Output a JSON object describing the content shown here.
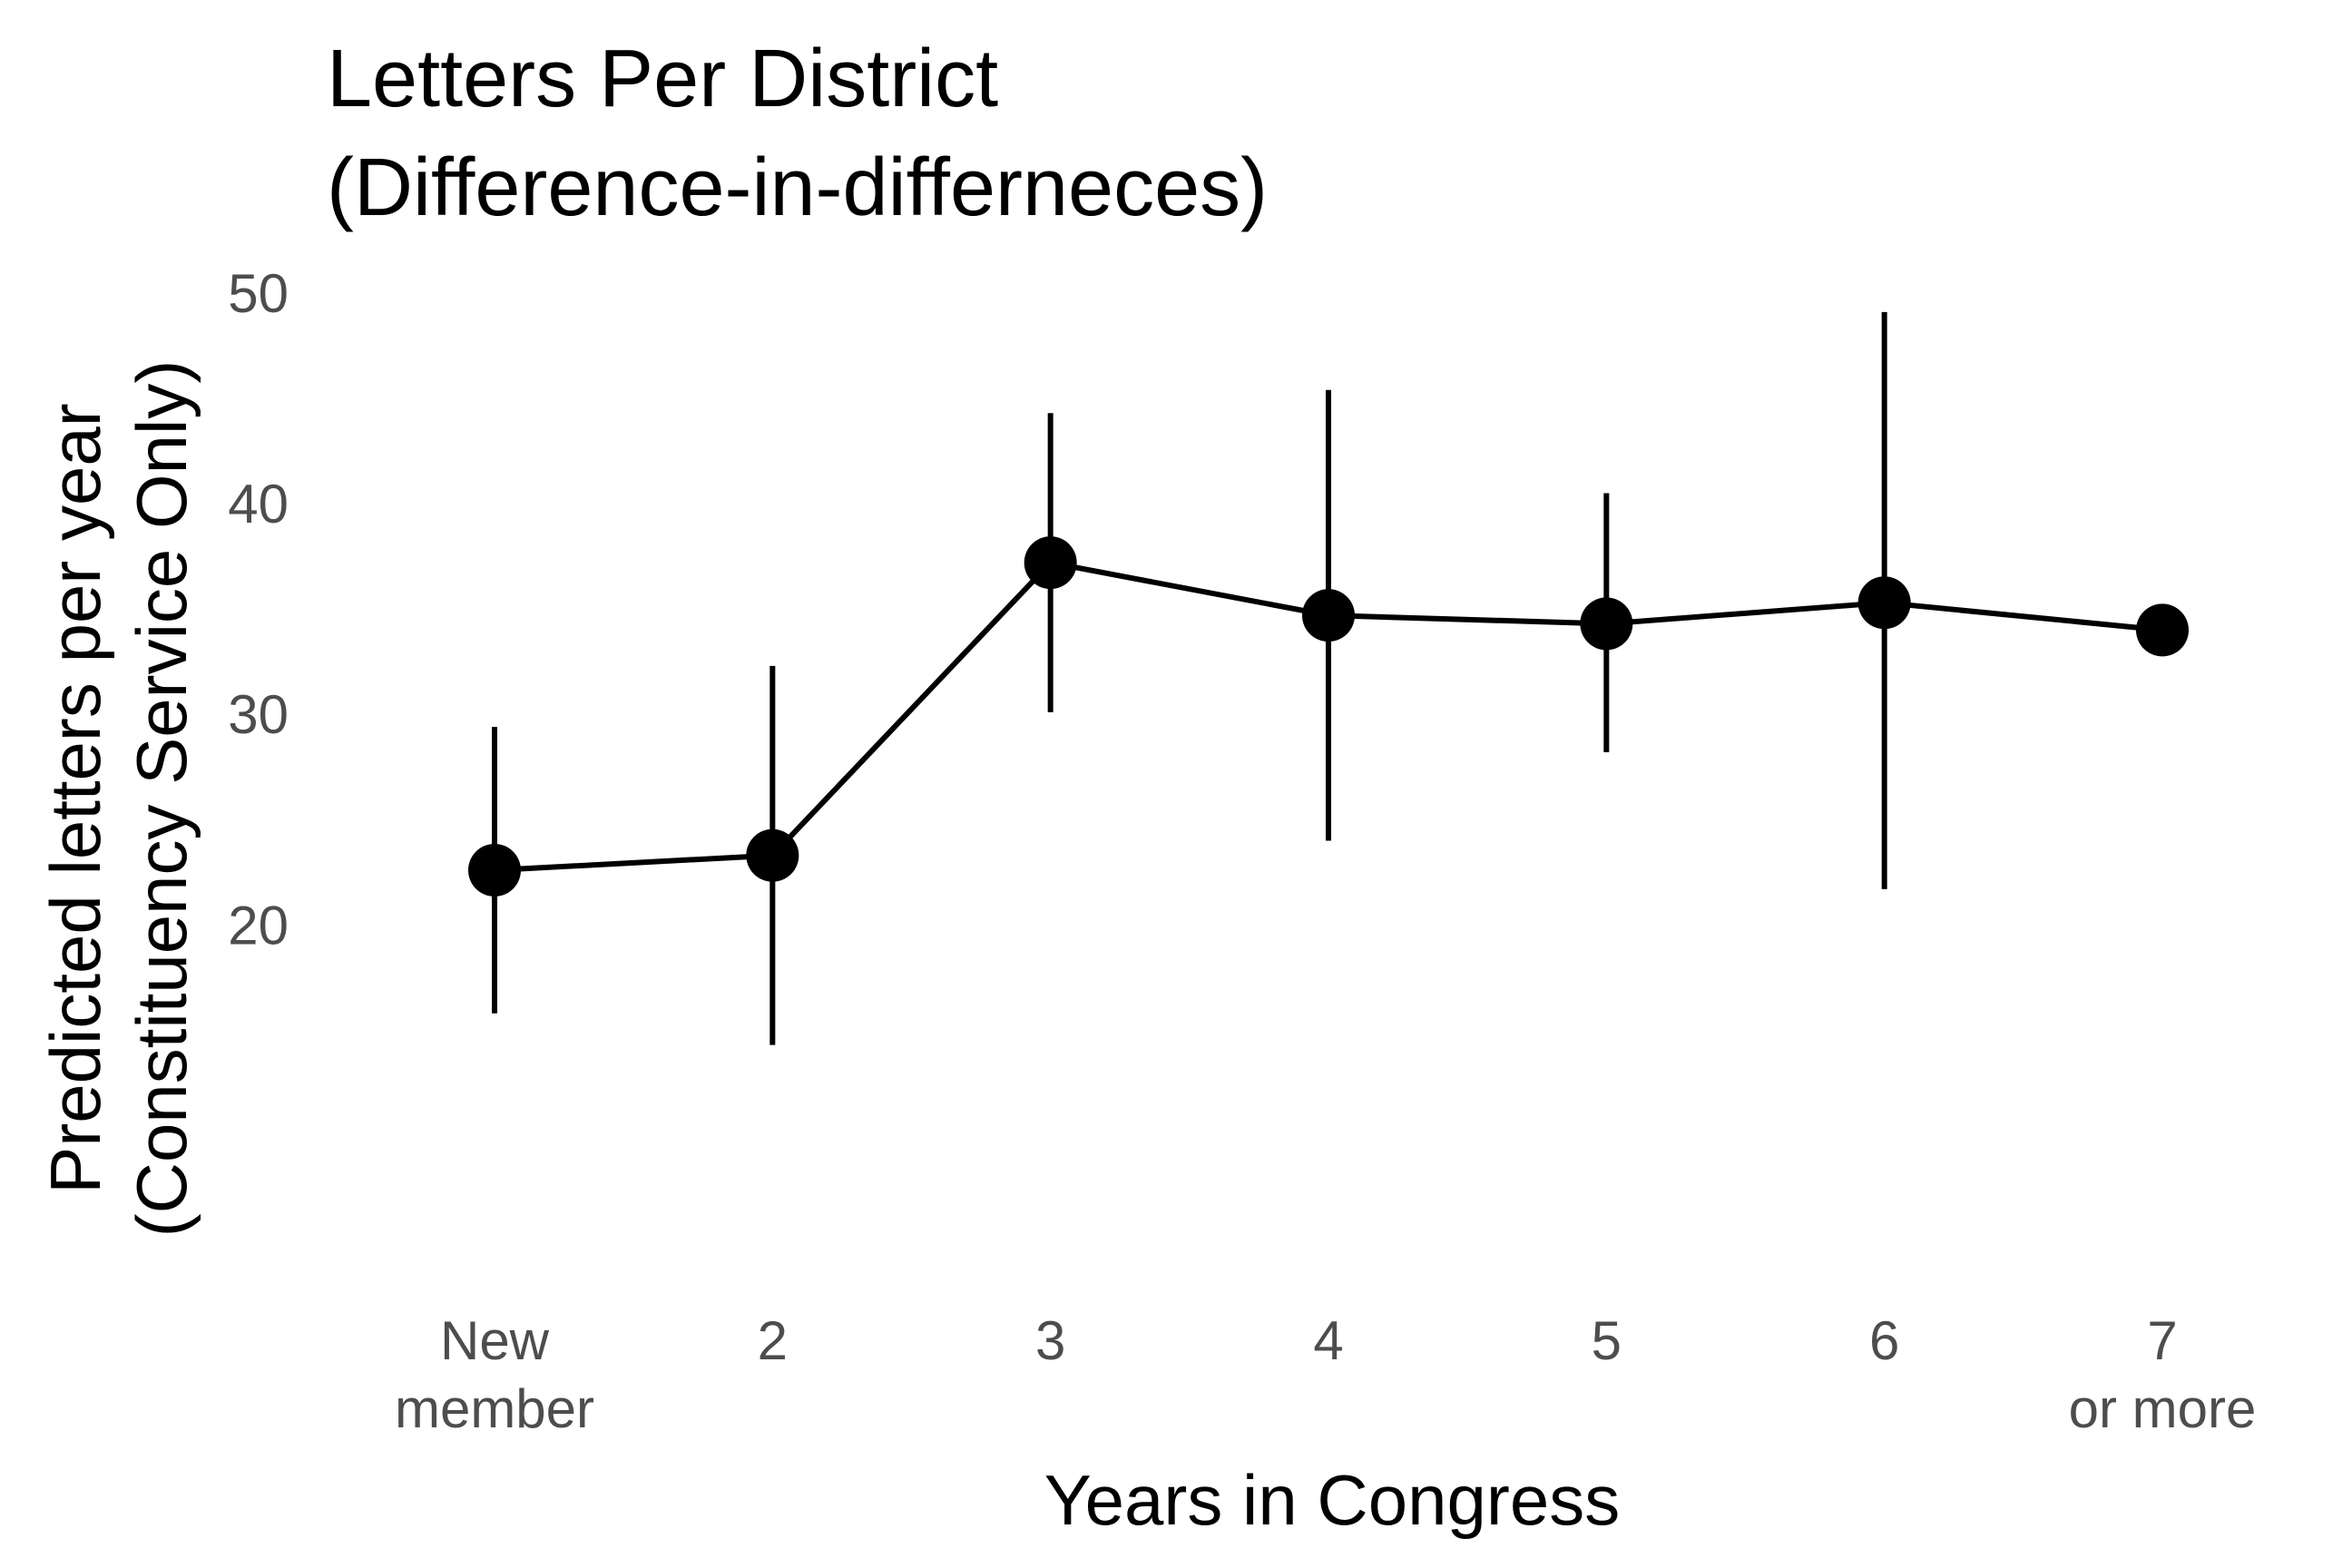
{
  "chart_data": {
    "type": "line",
    "title": [
      "Letters Per District",
      "(Difference-in-differneces)"
    ],
    "xlabel": "Years in Congress",
    "ylabel": [
      "Predicted letters per year",
      "(Constituency Service Only)"
    ],
    "categories": [
      [
        "New",
        "member"
      ],
      [
        "2"
      ],
      [
        "3"
      ],
      [
        "4"
      ],
      [
        "5"
      ],
      [
        "6"
      ],
      [
        "7",
        "or more"
      ]
    ],
    "yticks": [
      20,
      30,
      40,
      50
    ],
    "ylim": [
      12.0,
      50.0
    ],
    "grid": false,
    "legend": "none",
    "line_color": "#000000",
    "series": [
      {
        "values": [
          22.6,
          23.3,
          37.2,
          34.7,
          34.3,
          35.3,
          34.0
        ],
        "lower": [
          15.8,
          14.3,
          30.1,
          24.0,
          28.2,
          21.7,
          null
        ],
        "upper": [
          29.4,
          32.3,
          44.3,
          45.4,
          40.5,
          49.1,
          null
        ]
      }
    ]
  }
}
